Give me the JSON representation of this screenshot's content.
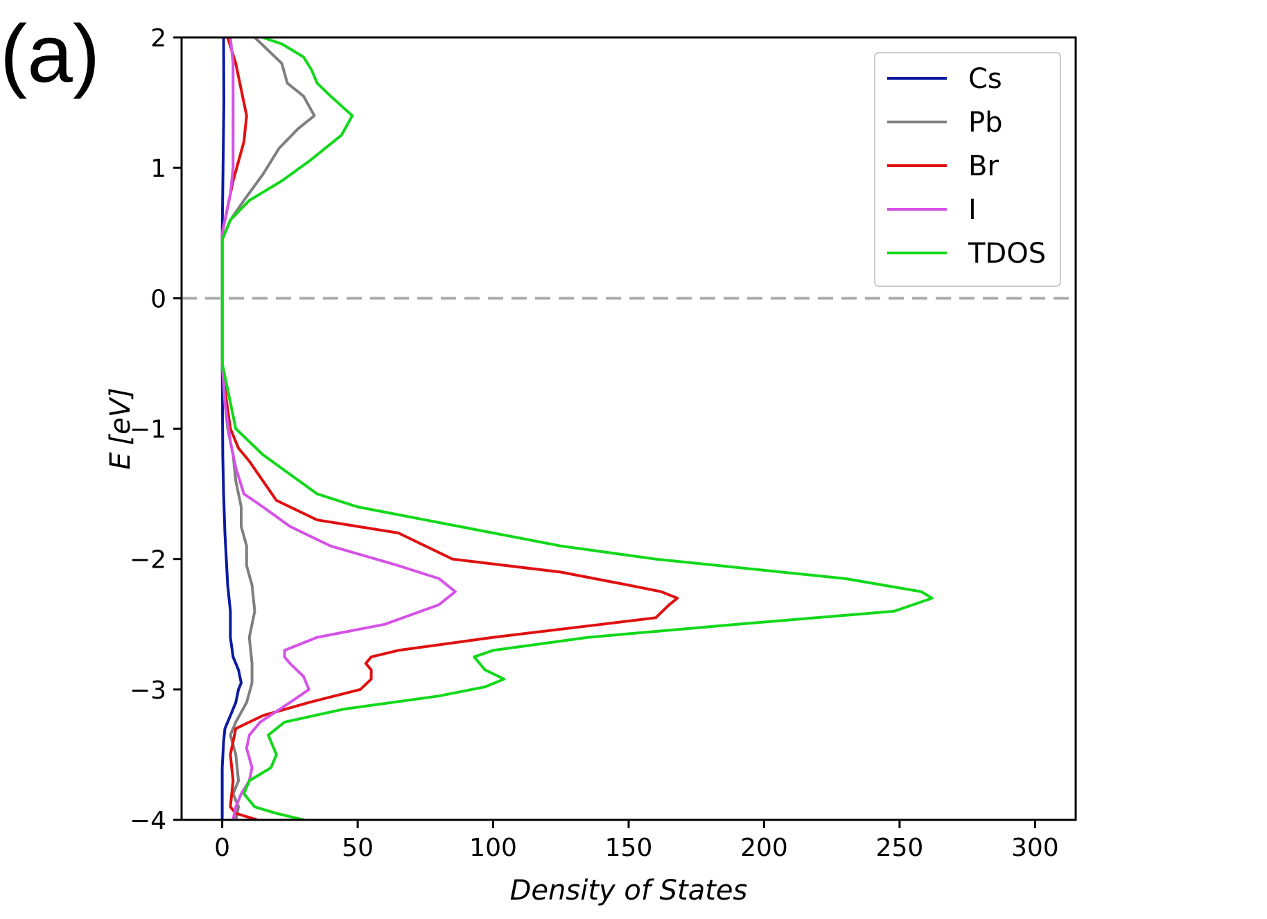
{
  "panel_label": "(a)",
  "chart_data": {
    "type": "line",
    "orientation": "horizontal-x-density",
    "xlabel": "Density of States",
    "ylabel": "E [eV]",
    "ylabel_parts": {
      "italic": "E",
      "unit": "[eV]"
    },
    "xlim": [
      -15,
      315
    ],
    "ylim": [
      -4,
      2
    ],
    "xticks": [
      0,
      50,
      100,
      150,
      200,
      250,
      300
    ],
    "xtick_labels": [
      "0",
      "50",
      "100",
      "150",
      "200",
      "250",
      "300"
    ],
    "yticks": [
      2,
      1,
      0,
      -1,
      -2,
      -3,
      -4
    ],
    "ytick_labels": [
      "2",
      "1",
      "0",
      "−1",
      "−2",
      "−3",
      "−4"
    ],
    "grid": false,
    "fermi_line": {
      "E": 0,
      "style": "dashed",
      "color": "#aaaaaa"
    },
    "legend_position": "top-right",
    "series": [
      {
        "name": "Cs",
        "color": "#0a1aa0",
        "points": [
          [
            0,
            -4
          ],
          [
            0,
            -3.6
          ],
          [
            0.5,
            -3.4
          ],
          [
            1,
            -3.3
          ],
          [
            3,
            -3.2
          ],
          [
            5,
            -3.1
          ],
          [
            6,
            -3.0
          ],
          [
            7,
            -2.95
          ],
          [
            6,
            -2.85
          ],
          [
            4,
            -2.75
          ],
          [
            3,
            -2.6
          ],
          [
            3,
            -2.4
          ],
          [
            2,
            -2.2
          ],
          [
            1.5,
            -2.0
          ],
          [
            1,
            -1.8
          ],
          [
            0.5,
            -1.5
          ],
          [
            0.2,
            -1.2
          ],
          [
            0,
            -0.5
          ],
          [
            0,
            0
          ],
          [
            0,
            0.5
          ],
          [
            0.3,
            1.0
          ],
          [
            0.6,
            1.5
          ],
          [
            0.5,
            2.0
          ]
        ]
      },
      {
        "name": "Pb",
        "color": "#7f7f7f",
        "points": [
          [
            5,
            -4
          ],
          [
            6,
            -3.9
          ],
          [
            4,
            -3.8
          ],
          [
            6,
            -3.7
          ],
          [
            5,
            -3.5
          ],
          [
            3,
            -3.35
          ],
          [
            5,
            -3.25
          ],
          [
            9,
            -3.1
          ],
          [
            11,
            -2.95
          ],
          [
            11,
            -2.8
          ],
          [
            10,
            -2.6
          ],
          [
            12,
            -2.4
          ],
          [
            11,
            -2.2
          ],
          [
            9,
            -2.05
          ],
          [
            9,
            -1.9
          ],
          [
            7,
            -1.75
          ],
          [
            7,
            -1.6
          ],
          [
            5,
            -1.4
          ],
          [
            4,
            -1.2
          ],
          [
            2,
            -1.0
          ],
          [
            1,
            -0.8
          ],
          [
            0,
            -0.5
          ],
          [
            0,
            0
          ],
          [
            0,
            0.45
          ],
          [
            3,
            0.6
          ],
          [
            8,
            0.75
          ],
          [
            15,
            0.95
          ],
          [
            21,
            1.15
          ],
          [
            28,
            1.3
          ],
          [
            34,
            1.4
          ],
          [
            30,
            1.55
          ],
          [
            24,
            1.65
          ],
          [
            22,
            1.8
          ],
          [
            17,
            1.9
          ],
          [
            12,
            2.0
          ]
        ]
      },
      {
        "name": "Br",
        "color": "#e01010",
        "points": [
          [
            13,
            -4
          ],
          [
            5,
            -3.95
          ],
          [
            3,
            -3.9
          ],
          [
            4,
            -3.7
          ],
          [
            3,
            -3.5
          ],
          [
            5,
            -3.3
          ],
          [
            15,
            -3.2
          ],
          [
            32,
            -3.1
          ],
          [
            51,
            -3.0
          ],
          [
            55,
            -2.92
          ],
          [
            55,
            -2.85
          ],
          [
            53,
            -2.8
          ],
          [
            55,
            -2.75
          ],
          [
            65,
            -2.7
          ],
          [
            100,
            -2.6
          ],
          [
            140,
            -2.5
          ],
          [
            160,
            -2.45
          ],
          [
            165,
            -2.35
          ],
          [
            168,
            -2.3
          ],
          [
            162,
            -2.25
          ],
          [
            150,
            -2.2
          ],
          [
            125,
            -2.1
          ],
          [
            85,
            -2.0
          ],
          [
            65,
            -1.8
          ],
          [
            35,
            -1.7
          ],
          [
            25,
            -1.6
          ],
          [
            20,
            -1.55
          ],
          [
            15,
            -1.4
          ],
          [
            10,
            -1.25
          ],
          [
            6,
            -1.15
          ],
          [
            3,
            -1.0
          ],
          [
            1,
            -0.7
          ],
          [
            0,
            -0.5
          ],
          [
            0,
            0
          ],
          [
            0,
            0.5
          ],
          [
            2,
            0.7
          ],
          [
            4,
            0.9
          ],
          [
            6,
            1.05
          ],
          [
            8,
            1.2
          ],
          [
            9,
            1.4
          ],
          [
            7,
            1.6
          ],
          [
            5,
            1.8
          ],
          [
            2,
            2.0
          ]
        ]
      },
      {
        "name": "I",
        "color": "#d553e6",
        "points": [
          [
            4,
            -4
          ],
          [
            5,
            -3.9
          ],
          [
            7,
            -3.8
          ],
          [
            10,
            -3.7
          ],
          [
            11,
            -3.6
          ],
          [
            9,
            -3.45
          ],
          [
            10,
            -3.35
          ],
          [
            14,
            -3.25
          ],
          [
            25,
            -3.1
          ],
          [
            32,
            -3.0
          ],
          [
            30,
            -2.9
          ],
          [
            25,
            -2.8
          ],
          [
            23,
            -2.75
          ],
          [
            23,
            -2.7
          ],
          [
            35,
            -2.6
          ],
          [
            60,
            -2.5
          ],
          [
            80,
            -2.35
          ],
          [
            86,
            -2.25
          ],
          [
            80,
            -2.15
          ],
          [
            65,
            -2.05
          ],
          [
            40,
            -1.9
          ],
          [
            25,
            -1.75
          ],
          [
            15,
            -1.6
          ],
          [
            8,
            -1.5
          ],
          [
            5,
            -1.3
          ],
          [
            3,
            -1.1
          ],
          [
            1,
            -0.8
          ],
          [
            0,
            -0.5
          ],
          [
            0,
            0
          ],
          [
            0,
            0.5
          ],
          [
            3,
            0.8
          ],
          [
            4,
            1.0
          ],
          [
            4,
            1.5
          ],
          [
            4,
            1.8
          ],
          [
            3,
            2.0
          ]
        ]
      },
      {
        "name": "TDOS",
        "color": "#12d81a",
        "points": [
          [
            30,
            -4
          ],
          [
            20,
            -3.95
          ],
          [
            12,
            -3.9
          ],
          [
            8,
            -3.8
          ],
          [
            10,
            -3.7
          ],
          [
            18,
            -3.6
          ],
          [
            20,
            -3.5
          ],
          [
            18,
            -3.4
          ],
          [
            17,
            -3.35
          ],
          [
            23,
            -3.25
          ],
          [
            45,
            -3.15
          ],
          [
            80,
            -3.05
          ],
          [
            97,
            -2.98
          ],
          [
            104,
            -2.92
          ],
          [
            97,
            -2.85
          ],
          [
            93,
            -2.75
          ],
          [
            100,
            -2.7
          ],
          [
            135,
            -2.6
          ],
          [
            190,
            -2.5
          ],
          [
            248,
            -2.4
          ],
          [
            262,
            -2.3
          ],
          [
            258,
            -2.25
          ],
          [
            230,
            -2.15
          ],
          [
            160,
            -2.0
          ],
          [
            125,
            -1.9
          ],
          [
            100,
            -1.8
          ],
          [
            75,
            -1.7
          ],
          [
            50,
            -1.6
          ],
          [
            35,
            -1.5
          ],
          [
            25,
            -1.35
          ],
          [
            15,
            -1.2
          ],
          [
            5,
            -1.0
          ],
          [
            1,
            -0.6
          ],
          [
            0,
            -0.5
          ],
          [
            0,
            0
          ],
          [
            0,
            0.45
          ],
          [
            3,
            0.6
          ],
          [
            10,
            0.75
          ],
          [
            22,
            0.9
          ],
          [
            32,
            1.05
          ],
          [
            38,
            1.15
          ],
          [
            44,
            1.25
          ],
          [
            48,
            1.4
          ],
          [
            40,
            1.55
          ],
          [
            35,
            1.65
          ],
          [
            33,
            1.75
          ],
          [
            30,
            1.85
          ],
          [
            22,
            1.95
          ],
          [
            15,
            2.0
          ]
        ]
      }
    ]
  }
}
